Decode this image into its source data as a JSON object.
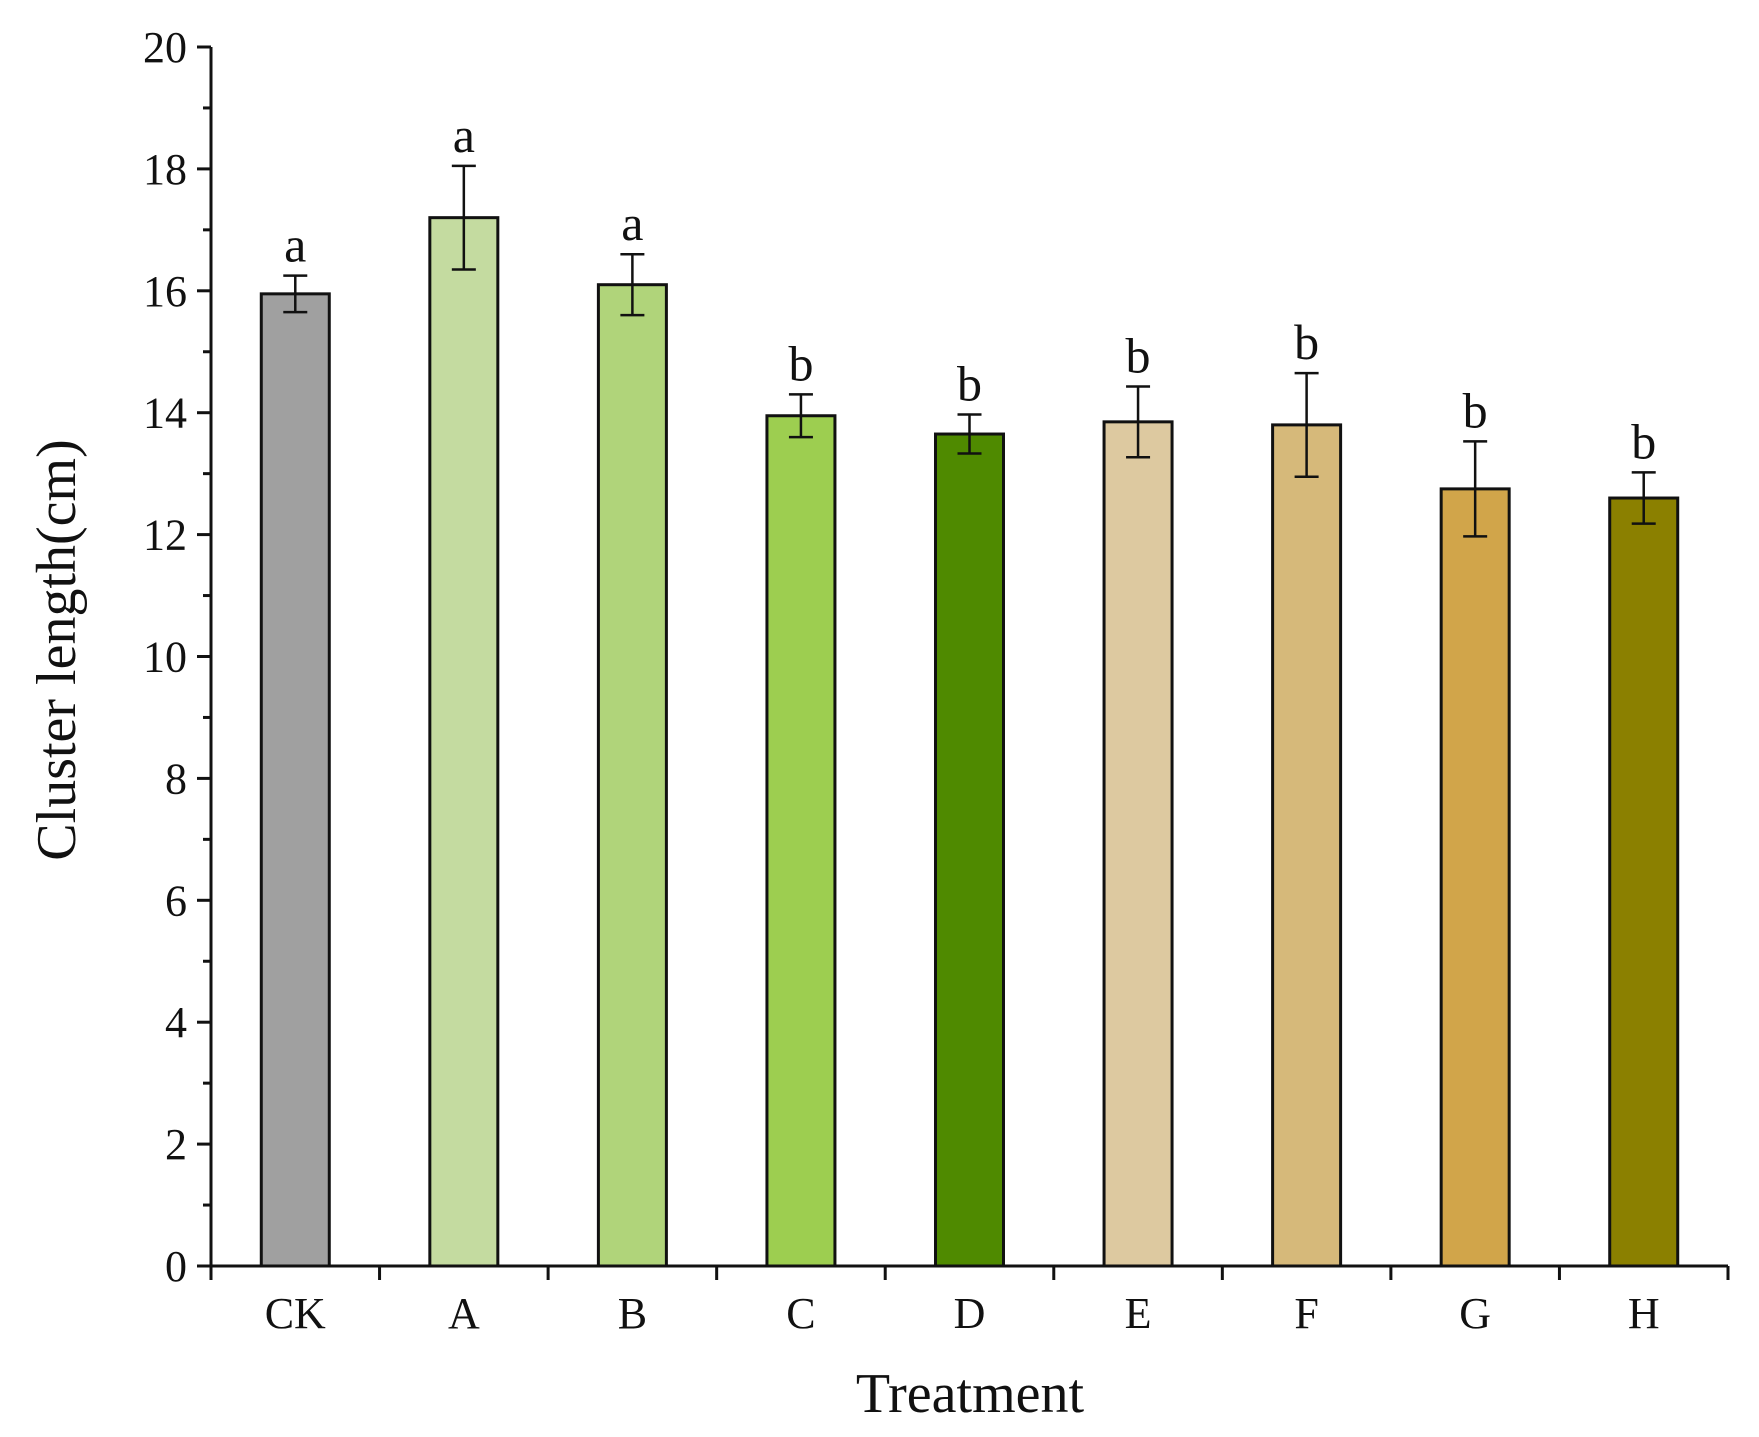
{
  "chart_data": {
    "type": "bar",
    "title": "",
    "xlabel": "Treatment",
    "ylabel": "Cluster length(cm)",
    "ylim": [
      0,
      20
    ],
    "yticks": [
      0,
      2,
      4,
      6,
      8,
      10,
      12,
      14,
      16,
      18,
      20
    ],
    "grid": false,
    "categories": [
      "CK",
      "A",
      "B",
      "C",
      "D",
      "E",
      "F",
      "G",
      "H"
    ],
    "values": [
      15.95,
      17.2,
      16.1,
      13.95,
      13.65,
      13.85,
      13.8,
      12.75,
      12.6
    ],
    "errors": [
      0.3,
      0.85,
      0.5,
      0.35,
      0.32,
      0.58,
      0.85,
      0.78,
      0.42
    ],
    "significance": [
      "a",
      "a",
      "a",
      "b",
      "b",
      "b",
      "b",
      "b",
      "b"
    ],
    "colors": [
      "#a0a0a0",
      "#c4dba0",
      "#b0d47a",
      "#9dce50",
      "#4f8a00",
      "#ddc9a0",
      "#d6b97a",
      "#d1a54a",
      "#8b8000"
    ]
  }
}
